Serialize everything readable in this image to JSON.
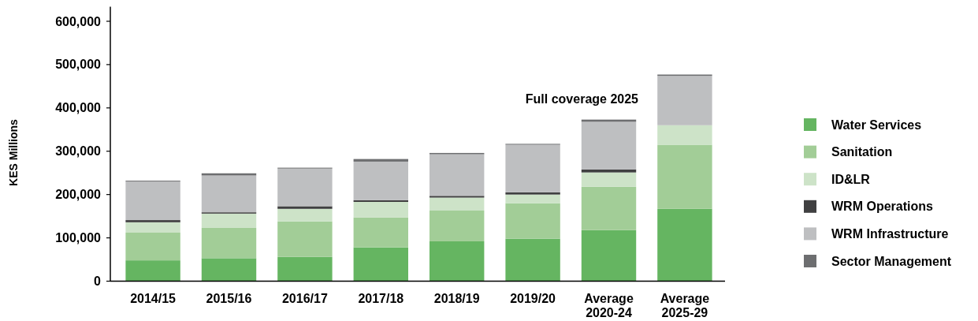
{
  "chart_data": {
    "type": "bar",
    "stacked": true,
    "ylabel": "KES Millions",
    "annotations": [
      "Full coverage 2025"
    ],
    "categories": [
      "2014/15",
      "2015/16",
      "2016/17",
      "2017/18",
      "2018/19",
      "2019/20",
      "Average 2020-24",
      "Average 2025-29"
    ],
    "series": [
      {
        "name": "Water Services",
        "color": "#65b561",
        "values": [
          48000,
          53000,
          56000,
          78000,
          92000,
          98000,
          118000,
          167000
        ]
      },
      {
        "name": "Sanitation",
        "color": "#a2cd97",
        "values": [
          64000,
          70000,
          82000,
          69000,
          71000,
          82000,
          100000,
          148000
        ]
      },
      {
        "name": "ID&LR",
        "color": "#cde3c8",
        "values": [
          24000,
          33000,
          29000,
          36000,
          30000,
          20000,
          33000,
          45000
        ]
      },
      {
        "name": "WRM Operations",
        "color": "#404041",
        "values": [
          5000,
          3000,
          6000,
          4000,
          4000,
          5000,
          7000,
          0
        ]
      },
      {
        "name": "WRM Infrastructure",
        "color": "#bebfc1",
        "values": [
          89000,
          85000,
          87000,
          89000,
          96000,
          110000,
          110000,
          114000
        ]
      },
      {
        "name": "Sector Management",
        "color": "#6d6e70",
        "values": [
          2000,
          5000,
          2000,
          6000,
          3000,
          2000,
          5000,
          3000
        ]
      }
    ],
    "ylim": [
      0,
      630000
    ],
    "yticks": [
      {
        "value": 0,
        "label": "0"
      },
      {
        "value": 100000,
        "label": "100,000"
      },
      {
        "value": 200000,
        "label": "200,000"
      },
      {
        "value": 300000,
        "label": "300,000"
      },
      {
        "value": 400000,
        "label": "400,000"
      },
      {
        "value": 500000,
        "label": "500,000"
      },
      {
        "value": 600000,
        "label": "600,000"
      }
    ],
    "grid": false,
    "legend": "right"
  }
}
